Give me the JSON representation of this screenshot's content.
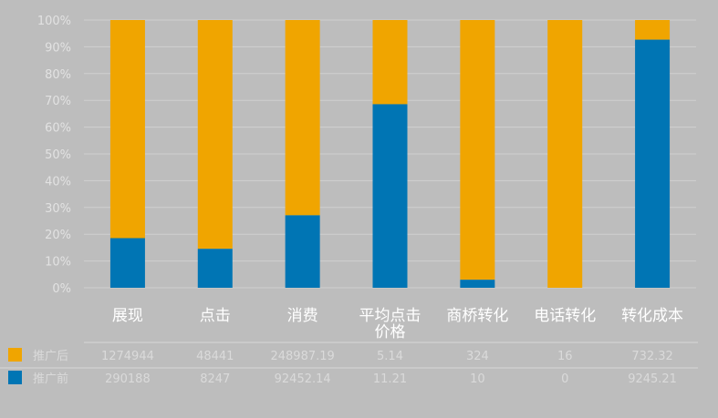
{
  "chart_data": {
    "type": "bar",
    "stacked": true,
    "normalized": true,
    "categories": [
      "展现",
      "点击",
      "消费",
      "平均点击价格",
      "商桥转化",
      "电话转化",
      "转化成本"
    ],
    "series": [
      {
        "name": "推广后",
        "color": "#f0a500",
        "values": [
          1274944,
          48441,
          248987.19,
          5.14,
          324,
          16,
          732.32
        ],
        "labels": [
          "1274944",
          "48441",
          "248987.19",
          "5.14",
          "324",
          "16",
          "732.32"
        ]
      },
      {
        "name": "推广前",
        "color": "#0075b4",
        "values": [
          290188,
          8247,
          92452.14,
          11.21,
          10,
          0,
          9245.21
        ],
        "labels": [
          "290188",
          "8247",
          "92452.14",
          "11.21",
          "10",
          "0",
          "9245.21"
        ]
      }
    ],
    "ylim": [
      0,
      100
    ],
    "yticks": [
      "0%",
      "10%",
      "20%",
      "30%",
      "40%",
      "50%",
      "60%",
      "70%",
      "80%",
      "90%",
      "100%"
    ],
    "grid": true,
    "legend": "bottom-left",
    "data_table": true
  }
}
